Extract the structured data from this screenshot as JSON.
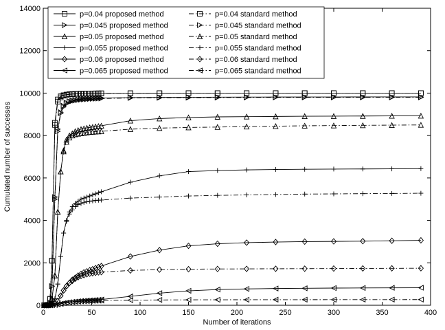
{
  "chart_data": {
    "type": "line",
    "title": "",
    "xlabel": "Number of iterations",
    "ylabel": "Cumulated number of successes",
    "xlim": [
      0,
      400
    ],
    "ylim": [
      0,
      14000
    ],
    "xticks": [
      0,
      50,
      100,
      150,
      200,
      250,
      300,
      350,
      400
    ],
    "yticks": [
      0,
      2000,
      4000,
      6000,
      8000,
      10000,
      12000,
      14000
    ],
    "grid": false,
    "legend_position": "top-left",
    "x": [
      1,
      3,
      5,
      7,
      9,
      12,
      15,
      18,
      21,
      24,
      27,
      30,
      33,
      36,
      39,
      42,
      45,
      48,
      51,
      54,
      57,
      60,
      90,
      120,
      150,
      180,
      210,
      240,
      270,
      300,
      330,
      360,
      390
    ],
    "series": [
      {
        "name": "p=0.04 proposed method",
        "style": "solid",
        "marker": "square",
        "values": [
          0,
          0,
          20,
          300,
          2100,
          8600,
          9700,
          9850,
          9900,
          9930,
          9950,
          9960,
          9965,
          9970,
          9975,
          9978,
          9980,
          9982,
          9984,
          9986,
          9988,
          9990,
          9995,
          9998,
          10000,
          10000,
          10000,
          10000,
          10000,
          10000,
          10000,
          10000,
          10000
        ]
      },
      {
        "name": "p=0.045 proposed method",
        "style": "solid",
        "marker": "triangle-right",
        "values": [
          0,
          0,
          15,
          120,
          900,
          5100,
          8300,
          9100,
          9400,
          9550,
          9620,
          9660,
          9690,
          9710,
          9725,
          9735,
          9745,
          9752,
          9758,
          9763,
          9767,
          9770,
          9790,
          9800,
          9805,
          9810,
          9812,
          9815,
          9817,
          9818,
          9820,
          9820,
          9820
        ]
      },
      {
        "name": "p=0.05 proposed method",
        "style": "solid",
        "marker": "triangle-up",
        "values": [
          0,
          0,
          10,
          60,
          300,
          1400,
          4400,
          6300,
          7300,
          7800,
          8000,
          8100,
          8200,
          8250,
          8300,
          8330,
          8360,
          8380,
          8400,
          8420,
          8440,
          8460,
          8700,
          8800,
          8850,
          8880,
          8890,
          8900,
          8910,
          8915,
          8920,
          8925,
          8930
        ]
      },
      {
        "name": "p=0.055 proposed method",
        "style": "solid",
        "marker": "plus",
        "values": [
          0,
          0,
          5,
          30,
          100,
          300,
          1000,
          2300,
          3400,
          4000,
          4400,
          4650,
          4800,
          4900,
          5000,
          5050,
          5100,
          5150,
          5200,
          5250,
          5300,
          5350,
          5800,
          6100,
          6300,
          6350,
          6380,
          6400,
          6410,
          6420,
          6425,
          6430,
          6440
        ]
      },
      {
        "name": "p=0.06 proposed method",
        "style": "solid",
        "marker": "diamond",
        "values": [
          0,
          0,
          0,
          10,
          30,
          80,
          200,
          450,
          700,
          900,
          1050,
          1200,
          1300,
          1400,
          1480,
          1550,
          1600,
          1650,
          1700,
          1750,
          1800,
          1850,
          2300,
          2600,
          2800,
          2900,
          2950,
          2980,
          3000,
          3010,
          3020,
          3040,
          3060
        ]
      },
      {
        "name": "p=0.065 proposed method",
        "style": "solid",
        "marker": "triangle-left",
        "values": [
          0,
          0,
          0,
          0,
          5,
          15,
          40,
          70,
          100,
          120,
          140,
          160,
          175,
          190,
          200,
          210,
          220,
          230,
          240,
          250,
          260,
          270,
          420,
          570,
          680,
          740,
          770,
          790,
          800,
          810,
          815,
          820,
          825
        ]
      },
      {
        "name": "p=0.04 standard method",
        "style": "dashdot",
        "marker": "square",
        "values": [
          0,
          0,
          20,
          300,
          2100,
          8500,
          9600,
          9800,
          9880,
          9920,
          9940,
          9950,
          9960,
          9965,
          9970,
          9975,
          9978,
          9980,
          9982,
          9984,
          9986,
          9988,
          9992,
          9995,
          9997,
          9998,
          9999,
          10000,
          10000,
          10000,
          10000,
          10000,
          10000
        ]
      },
      {
        "name": "p=0.045 standard method",
        "style": "dashdot",
        "marker": "triangle-right",
        "values": [
          0,
          0,
          15,
          120,
          900,
          5000,
          8200,
          9050,
          9350,
          9500,
          9580,
          9620,
          9650,
          9670,
          9690,
          9700,
          9710,
          9720,
          9730,
          9735,
          9740,
          9745,
          9770,
          9780,
          9785,
          9790,
          9795,
          9798,
          9800,
          9800,
          9800,
          9800,
          9800
        ]
      },
      {
        "name": "p=0.05 standard method",
        "style": "dashdot",
        "marker": "triangle-up",
        "values": [
          0,
          0,
          10,
          60,
          300,
          1400,
          4400,
          6300,
          7250,
          7700,
          7900,
          8000,
          8050,
          8080,
          8100,
          8120,
          8140,
          8160,
          8170,
          8180,
          8190,
          8200,
          8300,
          8350,
          8380,
          8400,
          8420,
          8440,
          8460,
          8470,
          8480,
          8490,
          8500
        ]
      },
      {
        "name": "p=0.055 standard method",
        "style": "dashdot",
        "marker": "plus",
        "values": [
          0,
          0,
          5,
          30,
          100,
          300,
          1000,
          2300,
          3400,
          3950,
          4300,
          4500,
          4650,
          4750,
          4800,
          4850,
          4880,
          4900,
          4920,
          4940,
          4950,
          4960,
          5050,
          5100,
          5150,
          5180,
          5200,
          5220,
          5240,
          5250,
          5260,
          5270,
          5280
        ]
      },
      {
        "name": "p=0.06 standard method",
        "style": "dashdot",
        "marker": "diamond",
        "values": [
          0,
          0,
          0,
          10,
          30,
          80,
          200,
          450,
          700,
          900,
          1050,
          1150,
          1250,
          1320,
          1380,
          1420,
          1460,
          1490,
          1510,
          1530,
          1550,
          1560,
          1640,
          1680,
          1700,
          1710,
          1715,
          1720,
          1725,
          1730,
          1735,
          1740,
          1745
        ]
      },
      {
        "name": "p=0.065 standard method",
        "style": "dashdot",
        "marker": "triangle-left",
        "values": [
          0,
          0,
          0,
          0,
          5,
          15,
          40,
          70,
          100,
          120,
          140,
          155,
          165,
          175,
          185,
          190,
          195,
          200,
          205,
          210,
          215,
          220,
          240,
          250,
          255,
          258,
          260,
          262,
          263,
          264,
          265,
          266,
          268
        ]
      }
    ]
  }
}
